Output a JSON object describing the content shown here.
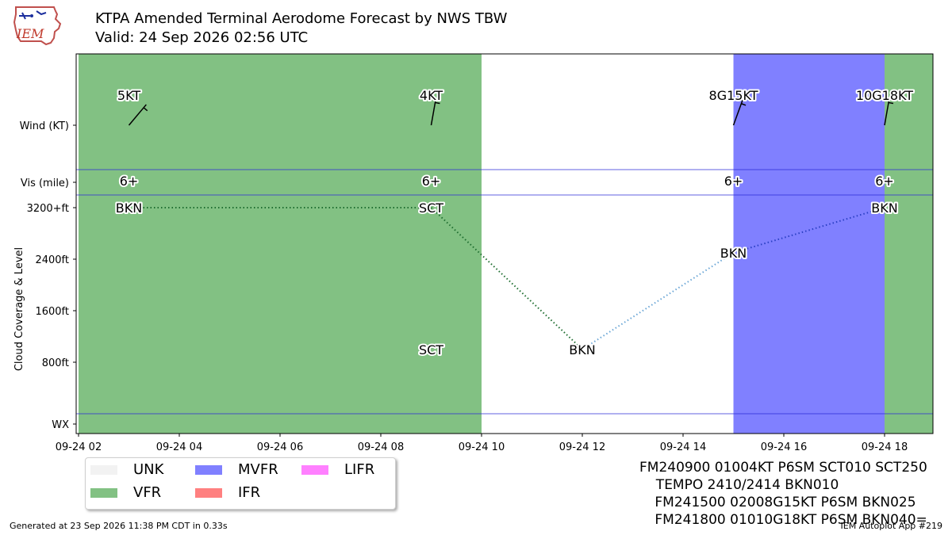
{
  "header": {
    "title": "KTPA Amended Terminal Aerodome Forecast by NWS TBW",
    "subtitle": "Valid: 24 Sep 2026 02:56 UTC",
    "logo_text": "IEM"
  },
  "chart_data": {
    "type": "scatter",
    "x_ticks": [
      "09-24 02",
      "09-24 04",
      "09-24 06",
      "09-24 08",
      "09-24 10",
      "09-24 12",
      "09-24 14",
      "09-24 16",
      "09-24 18"
    ],
    "xlim": [
      "09-24 02:00",
      "09-24 19:00"
    ],
    "y_ticks": [
      "Wind (KT)",
      "Vis (mile)",
      "3200+ft",
      "2400ft",
      "1600ft",
      "800ft",
      "WX"
    ],
    "ylabel": "Cloud Coverage & Level",
    "category_colors": {
      "UNK": "#f2f2f2",
      "VFR": "#82c183",
      "MVFR": "#8080ff",
      "IFR": "#ff8080",
      "LIFR": "#ff80ff"
    },
    "flight_category_periods": [
      {
        "start": "09-24 02:00",
        "end": "09-24 10:00",
        "category": "VFR"
      },
      {
        "start": "09-24 10:00",
        "end": "09-24 15:00",
        "category": "NONE"
      },
      {
        "start": "09-24 15:00",
        "end": "09-24 18:00",
        "category": "MVFR"
      },
      {
        "start": "09-24 18:00",
        "end": "09-24 19:00",
        "category": "VFR"
      }
    ],
    "wind": [
      {
        "time": "09-24 03:00",
        "label": "5KT",
        "dir_deg": 40
      },
      {
        "time": "09-24 09:00",
        "label": "4KT",
        "dir_deg": 10
      },
      {
        "time": "09-24 15:00",
        "label": "8G15KT",
        "dir_deg": 20
      },
      {
        "time": "09-24 18:00",
        "label": "10G18KT",
        "dir_deg": 10
      }
    ],
    "visibility": [
      {
        "time": "09-24 03:00",
        "label": "6+"
      },
      {
        "time": "09-24 09:00",
        "label": "6+"
      },
      {
        "time": "09-24 15:00",
        "label": "6+"
      },
      {
        "time": "09-24 18:00",
        "label": "6+"
      }
    ],
    "clouds": [
      {
        "time": "09-24 03:00",
        "label": "BKN",
        "level_ft": 3200
      },
      {
        "time": "09-24 09:00",
        "label": "SCT",
        "level_ft": 3200
      },
      {
        "time": "09-24 09:00",
        "label": "SCT",
        "level_ft": 1000
      },
      {
        "time": "09-24 12:00",
        "label": "BKN",
        "level_ft": 1000
      },
      {
        "time": "09-24 15:00",
        "label": "BKN",
        "level_ft": 2500
      },
      {
        "time": "09-24 18:00",
        "label": "BKN",
        "level_ft": 3200
      }
    ],
    "cloud_lines": [
      {
        "from": 0,
        "to": 1,
        "color": "#1f6e30"
      },
      {
        "from": 1,
        "to": 3,
        "color": "#1f6e30"
      },
      {
        "from": 3,
        "to": 4,
        "color": "#6aa6d6"
      },
      {
        "from": 4,
        "to": 5,
        "color": "#2a3fc4"
      }
    ]
  },
  "legend": {
    "items": [
      {
        "label": "UNK",
        "color": "#f2f2f2"
      },
      {
        "label": "VFR",
        "color": "#82c183"
      },
      {
        "label": "MVFR",
        "color": "#8080ff"
      },
      {
        "label": "IFR",
        "color": "#ff8080"
      },
      {
        "label": "LIFR",
        "color": "#ff80ff"
      }
    ]
  },
  "taf_text": [
    "FM240900 01004KT P6SM SCT010 SCT250",
    "  TEMPO 2410/2414 BKN010",
    " FM241500 02008G15KT P6SM BKN025",
    " FM241800 01010G18KT P6SM BKN040="
  ],
  "footer": {
    "generated": "Generated at 23 Sep 2026 11:38 PM CDT in 0.33s",
    "app": "IEM Autoplot App #219"
  }
}
